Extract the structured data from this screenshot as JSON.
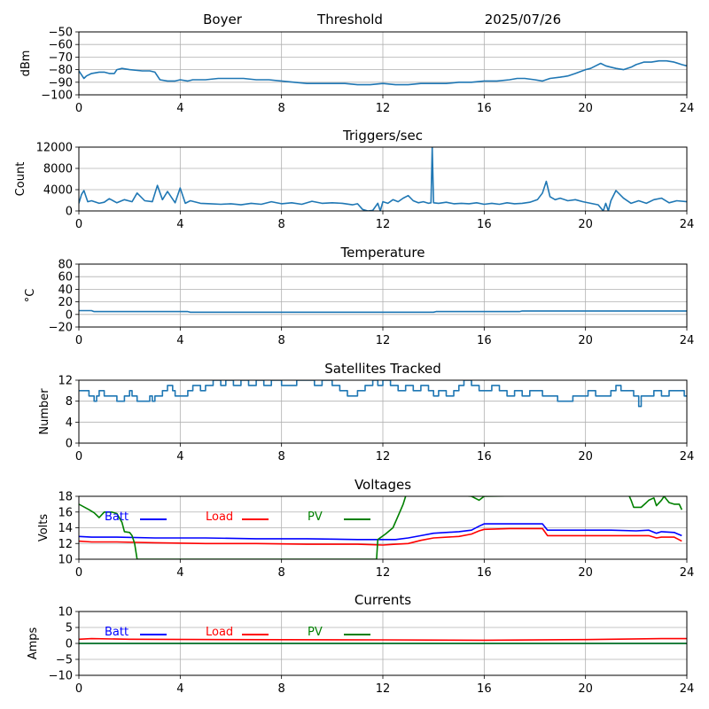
{
  "header": {
    "station": "Boyer",
    "mode": "Threshold",
    "date": "2025/07/26"
  },
  "colors": {
    "series_default": "#1f77b4",
    "batt": "#0000ff",
    "load": "#ff0000",
    "pv": "#008000",
    "grid": "#b0b0b0",
    "axes": "#000000"
  },
  "chart_data": [
    {
      "id": "signal",
      "type": "line",
      "title": "",
      "ylabel": "dBm",
      "xlabel": "",
      "xlim": [
        0,
        24
      ],
      "ylim": [
        -100,
        -50
      ],
      "x_ticks": [
        "0",
        "4",
        "8",
        "12",
        "16",
        "20",
        "24"
      ],
      "y_ticks": [
        "−100",
        "−90",
        "−80",
        "−70",
        "−60",
        "−50"
      ],
      "grid": true,
      "series": [
        {
          "x": [
            0,
            0.1,
            0.2,
            0.3,
            0.5,
            0.8,
            1.0,
            1.2,
            1.4,
            1.5,
            1.7,
            2.0,
            2.5,
            2.8,
            3.0,
            3.2,
            3.5,
            3.8,
            4.0,
            4.3,
            4.5,
            5.0,
            5.5,
            6.0,
            6.5,
            7.0,
            7.5,
            8.0,
            8.5,
            9.0,
            9.5,
            10.0,
            10.5,
            11.0,
            11.5,
            12.0,
            12.5,
            13.0,
            13.5,
            14.0,
            14.5,
            15.0,
            15.5,
            16.0,
            16.5,
            17.0,
            17.3,
            17.6,
            18.0,
            18.3,
            18.6,
            19.0,
            19.3,
            19.6,
            20.0,
            20.2,
            20.4,
            20.6,
            20.8,
            21.0,
            21.2,
            21.5,
            21.8,
            22.0,
            22.3,
            22.6,
            22.9,
            23.2,
            23.5,
            23.8,
            24.0
          ],
          "y": [
            -81,
            -84,
            -87,
            -85,
            -83,
            -82,
            -82,
            -83,
            -83,
            -80,
            -79,
            -80,
            -81,
            -81,
            -82,
            -88,
            -89,
            -89,
            -88,
            -89,
            -88,
            -88,
            -87,
            -87,
            -87,
            -88,
            -88,
            -89,
            -90,
            -91,
            -91,
            -91,
            -91,
            -92,
            -92,
            -91,
            -92,
            -92,
            -91,
            -91,
            -91,
            -90,
            -90,
            -89,
            -89,
            -88,
            -87,
            -87,
            -88,
            -89,
            -87,
            -86,
            -85,
            -83,
            -80,
            -79,
            -77,
            -75,
            -77,
            -78,
            -79,
            -80,
            -78,
            -76,
            -74,
            -74,
            -73,
            -73,
            -74,
            -76,
            -77
          ]
        }
      ]
    },
    {
      "id": "triggers",
      "type": "line",
      "title": "Triggers/sec",
      "ylabel": "Count",
      "xlabel": "",
      "xlim": [
        0,
        24
      ],
      "ylim": [
        0,
        12500
      ],
      "x_ticks": [
        "0",
        "4",
        "8",
        "12",
        "16",
        "20",
        "24"
      ],
      "y_ticks": [
        "0",
        "4000",
        "8000",
        "12000"
      ],
      "grid": true,
      "series": [
        {
          "x": [
            0,
            0.1,
            0.2,
            0.35,
            0.5,
            0.8,
            1.0,
            1.2,
            1.5,
            1.8,
            2.1,
            2.3,
            2.6,
            2.9,
            3.1,
            3.3,
            3.5,
            3.8,
            4.0,
            4.2,
            4.4,
            4.8,
            5.2,
            5.6,
            6.0,
            6.4,
            6.8,
            7.2,
            7.6,
            8.0,
            8.4,
            8.8,
            9.2,
            9.6,
            10.0,
            10.4,
            10.8,
            11.0,
            11.2,
            11.4,
            11.6,
            11.8,
            11.9,
            12.0,
            12.2,
            12.4,
            12.6,
            12.8,
            13.0,
            13.2,
            13.4,
            13.6,
            13.8,
            13.9,
            13.95,
            14.0,
            14.2,
            14.5,
            14.8,
            15.1,
            15.4,
            15.7,
            16.0,
            16.3,
            16.6,
            16.9,
            17.2,
            17.5,
            17.8,
            18.1,
            18.3,
            18.45,
            18.6,
            18.8,
            19.0,
            19.3,
            19.6,
            19.9,
            20.2,
            20.5,
            20.7,
            20.8,
            20.9,
            21.0,
            21.2,
            21.5,
            21.8,
            22.1,
            22.4,
            22.7,
            23.0,
            23.3,
            23.6,
            24.0
          ],
          "y": [
            1500,
            3200,
            4000,
            1800,
            2000,
            1500,
            1700,
            2400,
            1600,
            2200,
            1800,
            3500,
            2000,
            1800,
            5000,
            2200,
            3800,
            1600,
            4500,
            1500,
            2000,
            1500,
            1400,
            1300,
            1400,
            1200,
            1500,
            1300,
            1800,
            1400,
            1600,
            1300,
            1900,
            1500,
            1600,
            1500,
            1200,
            1400,
            300,
            0,
            100,
            1500,
            0,
            1800,
            1500,
            2200,
            1800,
            2500,
            3000,
            2000,
            1600,
            1800,
            1500,
            1600,
            12500,
            1600,
            1500,
            1700,
            1400,
            1500,
            1400,
            1600,
            1300,
            1500,
            1300,
            1600,
            1400,
            1500,
            1700,
            2200,
            3500,
            5800,
            2800,
            2200,
            2500,
            2000,
            2200,
            1800,
            1500,
            1200,
            0,
            1500,
            0,
            2000,
            4000,
            2500,
            1500,
            2000,
            1500,
            2200,
            2500,
            1600,
            2000,
            1800
          ]
        }
      ]
    },
    {
      "id": "temperature",
      "type": "line",
      "title": "Temperature",
      "ylabel": "°C",
      "xlabel": "",
      "xlim": [
        0,
        24
      ],
      "ylim": [
        -20,
        80
      ],
      "x_ticks": [
        "0",
        "4",
        "8",
        "12",
        "16",
        "20",
        "24"
      ],
      "y_ticks": [
        "−20",
        "0",
        "20",
        "40",
        "60",
        "80"
      ],
      "grid": true,
      "series": [
        {
          "x": [
            0,
            0.5,
            0.6,
            4.3,
            4.4,
            14.0,
            14.1,
            17.4,
            17.5,
            24
          ],
          "y": [
            6,
            6,
            4.5,
            4.5,
            3.5,
            3.5,
            4.5,
            4.5,
            5.5,
            5.5
          ]
        }
      ]
    },
    {
      "id": "satellites",
      "type": "line",
      "title": "Satellites Tracked",
      "ylabel": "Number",
      "xlabel": "",
      "xlim": [
        0,
        24
      ],
      "ylim": [
        0,
        12
      ],
      "x_ticks": [
        "0",
        "4",
        "8",
        "12",
        "16",
        "20",
        "24"
      ],
      "y_ticks": [
        "0",
        "4",
        "8",
        "12"
      ],
      "grid": true,
      "step": true,
      "series": [
        {
          "x": [
            0,
            0.4,
            0.6,
            0.7,
            0.8,
            1.0,
            1.2,
            1.5,
            1.8,
            2.0,
            2.1,
            2.3,
            2.8,
            2.9,
            3.0,
            3.3,
            3.5,
            3.7,
            3.8,
            4.0,
            4.3,
            4.5,
            4.8,
            5.0,
            5.3,
            5.6,
            5.8,
            6.1,
            6.4,
            6.7,
            7.0,
            7.3,
            7.6,
            8.0,
            8.3,
            8.6,
            9.0,
            9.3,
            9.6,
            10.0,
            10.3,
            10.6,
            11.0,
            11.3,
            11.6,
            11.8,
            12.0,
            12.3,
            12.6,
            12.9,
            13.2,
            13.5,
            13.8,
            14.0,
            14.2,
            14.5,
            14.8,
            15.0,
            15.2,
            15.5,
            15.8,
            16.0,
            16.3,
            16.6,
            16.9,
            17.2,
            17.5,
            17.8,
            18.0,
            18.3,
            18.6,
            18.9,
            19.2,
            19.5,
            19.8,
            20.1,
            20.4,
            20.7,
            21.0,
            21.2,
            21.4,
            21.6,
            21.9,
            22.1,
            22.2,
            22.4,
            22.7,
            23.0,
            23.3,
            23.6,
            23.9,
            24.0
          ],
          "y": [
            10,
            9,
            8,
            9,
            10,
            9,
            9,
            8,
            9,
            10,
            9,
            8,
            9,
            8,
            9,
            10,
            11,
            10,
            9,
            9,
            10,
            11,
            10,
            11,
            12,
            11,
            12,
            11,
            12,
            11,
            12,
            11,
            12,
            11,
            11,
            12,
            12,
            11,
            12,
            11,
            10,
            9,
            10,
            11,
            12,
            11,
            12,
            11,
            10,
            11,
            10,
            11,
            10,
            9,
            10,
            9,
            10,
            11,
            12,
            11,
            10,
            10,
            11,
            10,
            9,
            10,
            9,
            10,
            10,
            9,
            9,
            8,
            8,
            9,
            9,
            10,
            9,
            9,
            10,
            11,
            10,
            10,
            9,
            7,
            9,
            9,
            10,
            9,
            10,
            10,
            9,
            9
          ]
        }
      ]
    },
    {
      "id": "voltages",
      "type": "line",
      "title": "Voltages",
      "ylabel": "Volts",
      "xlabel": "",
      "xlim": [
        0,
        24
      ],
      "ylim": [
        10,
        18
      ],
      "x_ticks": [
        "0",
        "4",
        "8",
        "12",
        "16",
        "20",
        "24"
      ],
      "y_ticks": [
        "10",
        "12",
        "14",
        "16",
        "18"
      ],
      "grid": true,
      "legend_placement": "top-left",
      "series": [
        {
          "name": "Batt",
          "color_key": "batt",
          "x": [
            0,
            0.5,
            1.5,
            3,
            5,
            7,
            9,
            11,
            12,
            12.5,
            13,
            13.5,
            14,
            15,
            15.5,
            15.8,
            16,
            17,
            18,
            18.3,
            18.5,
            19,
            20,
            21,
            22,
            22.5,
            22.8,
            23,
            23.5,
            23.8
          ],
          "y": [
            12.9,
            12.8,
            12.8,
            12.7,
            12.7,
            12.6,
            12.6,
            12.5,
            12.5,
            12.5,
            12.7,
            13.0,
            13.3,
            13.5,
            13.7,
            14.2,
            14.5,
            14.5,
            14.5,
            14.5,
            13.7,
            13.7,
            13.7,
            13.7,
            13.6,
            13.7,
            13.3,
            13.5,
            13.4,
            13.0
          ]
        },
        {
          "name": "Load",
          "color_key": "load",
          "x": [
            0,
            0.5,
            1.5,
            3,
            5,
            7,
            9,
            11,
            12,
            12.5,
            13,
            13.5,
            14,
            15,
            15.5,
            15.8,
            16,
            17,
            18,
            18.3,
            18.5,
            19,
            20,
            21,
            22,
            22.5,
            22.8,
            23,
            23.5,
            23.8
          ],
          "y": [
            12.3,
            12.2,
            12.2,
            12.1,
            12.0,
            12.0,
            11.9,
            11.9,
            11.8,
            11.9,
            12.0,
            12.4,
            12.7,
            12.9,
            13.2,
            13.6,
            13.8,
            13.9,
            13.9,
            13.9,
            13.0,
            13.0,
            13.0,
            13.0,
            13.0,
            13.0,
            12.7,
            12.8,
            12.8,
            12.3
          ]
        },
        {
          "name": "PV",
          "color_key": "pv",
          "x": [
            0,
            0.4,
            0.6,
            0.8,
            1.0,
            1.3,
            1.5,
            1.7,
            1.8,
            2.0,
            2.1,
            2.2,
            2.25,
            2.3,
            11.75,
            11.8,
            12.1,
            12.4,
            12.6,
            12.8,
            12.9,
            13.0,
            15.5,
            15.8,
            16.0,
            21.7,
            21.8,
            21.9,
            22.0,
            22.2,
            22.4,
            22.5,
            22.7,
            22.8,
            23.0,
            23.1,
            23.3,
            23.5,
            23.7,
            23.8
          ],
          "y": [
            17.0,
            16.3,
            15.9,
            15.3,
            16.0,
            16.0,
            15.8,
            14.7,
            13.5,
            13.4,
            13.0,
            12.0,
            11.0,
            10.0,
            10.0,
            12.5,
            13.2,
            14.0,
            15.5,
            17.0,
            18.0,
            18.5,
            18.0,
            17.5,
            18.0,
            18.2,
            17.5,
            16.6,
            16.6,
            16.6,
            17.2,
            17.5,
            17.8,
            16.8,
            17.5,
            18.0,
            17.2,
            17.0,
            17.0,
            16.3
          ]
        }
      ]
    },
    {
      "id": "currents",
      "type": "line",
      "title": "Currents",
      "ylabel": "Amps",
      "xlabel": "",
      "xlim": [
        0,
        24
      ],
      "ylim": [
        -10,
        10
      ],
      "x_ticks": [
        "0",
        "4",
        "8",
        "12",
        "16",
        "20",
        "24"
      ],
      "y_ticks": [
        "−10",
        "−5",
        "0",
        "5",
        "10"
      ],
      "grid": true,
      "legend_placement": "top-left",
      "series": [
        {
          "name": "Batt",
          "color_key": "batt",
          "x": [
            0,
            24
          ],
          "y": [
            0,
            0
          ]
        },
        {
          "name": "Load",
          "color_key": "load",
          "x": [
            0,
            0.5,
            2,
            6,
            12,
            16,
            20,
            23,
            24
          ],
          "y": [
            1.3,
            1.5,
            1.3,
            1.2,
            1.1,
            1.0,
            1.2,
            1.5,
            1.5
          ]
        },
        {
          "name": "PV",
          "color_key": "pv",
          "x": [
            0,
            24
          ],
          "y": [
            0,
            0
          ]
        }
      ]
    }
  ]
}
